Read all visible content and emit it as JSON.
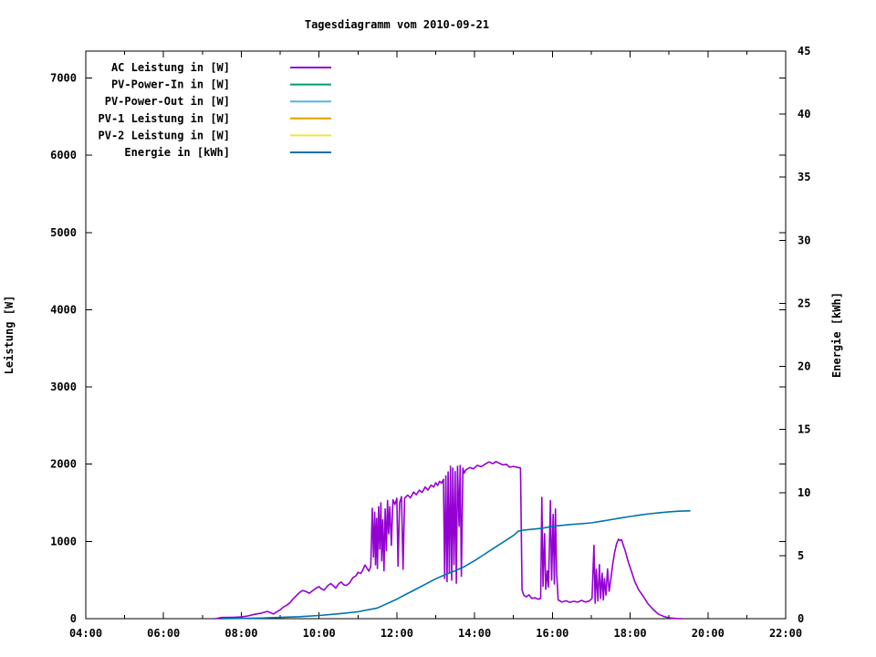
{
  "title": "Tagesdiagramm vom 2010-09-21",
  "axes": {
    "x": {
      "range_hours": [
        4,
        22
      ],
      "major_ticks": [
        {
          "h": 4,
          "label": "04:00"
        },
        {
          "h": 6,
          "label": "06:00"
        },
        {
          "h": 8,
          "label": "08:00"
        },
        {
          "h": 10,
          "label": "10:00"
        },
        {
          "h": 12,
          "label": "12:00"
        },
        {
          "h": 14,
          "label": "14:00"
        },
        {
          "h": 16,
          "label": "16:00"
        },
        {
          "h": 18,
          "label": "18:00"
        },
        {
          "h": 20,
          "label": "20:00"
        },
        {
          "h": 22,
          "label": "22:00"
        }
      ],
      "minor_tick_hours": [
        5,
        7,
        9,
        11,
        13,
        15,
        17,
        19,
        21
      ]
    },
    "y_left": {
      "label": "Leistung [W]",
      "range": [
        0,
        7350
      ],
      "ticks": [
        0,
        1000,
        2000,
        3000,
        4000,
        5000,
        6000,
        7000
      ]
    },
    "y_right": {
      "label": "Energie [kWh]",
      "range": [
        0,
        45
      ],
      "ticks": [
        0,
        5,
        10,
        15,
        20,
        25,
        30,
        35,
        40,
        45
      ]
    }
  },
  "chart_data": {
    "type": "line",
    "title": "Tagesdiagramm vom 2010-09-21",
    "xlabel": "",
    "x_unit": "time (HH:MM), decimal hours in points",
    "legend_position": "top-left-inside",
    "grid": false,
    "series": [
      {
        "name": "AC Leistung in [W]",
        "color": "#9400D3",
        "axis": "left",
        "points": [
          [
            7.33,
            0
          ],
          [
            7.5,
            15
          ],
          [
            7.8,
            18
          ],
          [
            8.0,
            22
          ],
          [
            8.17,
            35
          ],
          [
            8.33,
            55
          ],
          [
            8.5,
            70
          ],
          [
            8.67,
            95
          ],
          [
            8.83,
            60
          ],
          [
            8.9,
            85
          ],
          [
            9.0,
            115
          ],
          [
            9.08,
            150
          ],
          [
            9.17,
            175
          ],
          [
            9.25,
            205
          ],
          [
            9.33,
            255
          ],
          [
            9.42,
            300
          ],
          [
            9.5,
            340
          ],
          [
            9.58,
            365
          ],
          [
            9.67,
            350
          ],
          [
            9.75,
            330
          ],
          [
            9.83,
            360
          ],
          [
            9.92,
            395
          ],
          [
            10.0,
            415
          ],
          [
            10.05,
            390
          ],
          [
            10.13,
            370
          ],
          [
            10.22,
            425
          ],
          [
            10.3,
            455
          ],
          [
            10.37,
            425
          ],
          [
            10.43,
            395
          ],
          [
            10.5,
            450
          ],
          [
            10.57,
            475
          ],
          [
            10.63,
            440
          ],
          [
            10.7,
            430
          ],
          [
            10.78,
            460
          ],
          [
            10.87,
            530
          ],
          [
            10.95,
            555
          ],
          [
            11.0,
            600
          ],
          [
            11.07,
            585
          ],
          [
            11.13,
            635
          ],
          [
            11.18,
            695
          ],
          [
            11.23,
            655
          ],
          [
            11.28,
            615
          ],
          [
            11.33,
            675
          ],
          [
            11.37,
            1430
          ],
          [
            11.4,
            800
          ],
          [
            11.43,
            1380
          ],
          [
            11.45,
            700
          ],
          [
            11.48,
            1300
          ],
          [
            11.5,
            650
          ],
          [
            11.53,
            1450
          ],
          [
            11.56,
            900
          ],
          [
            11.59,
            1500
          ],
          [
            11.61,
            750
          ],
          [
            11.64,
            1280
          ],
          [
            11.67,
            620
          ],
          [
            11.7,
            1420
          ],
          [
            11.73,
            880
          ],
          [
            11.76,
            1530
          ],
          [
            11.79,
            1100
          ],
          [
            11.82,
            1450
          ],
          [
            11.86,
            950
          ],
          [
            11.9,
            1540
          ],
          [
            11.95,
            1480
          ],
          [
            12.0,
            1560
          ],
          [
            12.03,
            680
          ],
          [
            12.07,
            1500
          ],
          [
            12.12,
            1580
          ],
          [
            12.16,
            640
          ],
          [
            12.2,
            1560
          ],
          [
            12.28,
            1600
          ],
          [
            12.35,
            1565
          ],
          [
            12.43,
            1640
          ],
          [
            12.5,
            1605
          ],
          [
            12.58,
            1665
          ],
          [
            12.65,
            1635
          ],
          [
            12.73,
            1705
          ],
          [
            12.8,
            1665
          ],
          [
            12.88,
            1730
          ],
          [
            12.95,
            1705
          ],
          [
            13.0,
            1760
          ],
          [
            13.05,
            1725
          ],
          [
            13.1,
            1780
          ],
          [
            13.15,
            1755
          ],
          [
            13.2,
            1805
          ],
          [
            13.23,
            520
          ],
          [
            13.26,
            1850
          ],
          [
            13.29,
            480
          ],
          [
            13.32,
            1900
          ],
          [
            13.35,
            600
          ],
          [
            13.38,
            1975
          ],
          [
            13.41,
            500
          ],
          [
            13.44,
            1950
          ],
          [
            13.47,
            700
          ],
          [
            13.5,
            1905
          ],
          [
            13.53,
            460
          ],
          [
            13.56,
            1975
          ],
          [
            13.6,
            1200
          ],
          [
            13.63,
            1985
          ],
          [
            13.66,
            550
          ],
          [
            13.7,
            1950
          ],
          [
            13.73,
            1885
          ],
          [
            13.78,
            1930
          ],
          [
            13.88,
            1958
          ],
          [
            13.97,
            1940
          ],
          [
            14.07,
            1985
          ],
          [
            14.17,
            1968
          ],
          [
            14.27,
            2000
          ],
          [
            14.37,
            2030
          ],
          [
            14.47,
            2008
          ],
          [
            14.55,
            2035
          ],
          [
            14.63,
            2015
          ],
          [
            14.72,
            1992
          ],
          [
            14.82,
            1998
          ],
          [
            14.9,
            1962
          ],
          [
            15.0,
            1972
          ],
          [
            15.08,
            1960
          ],
          [
            15.18,
            1952
          ],
          [
            15.22,
            370
          ],
          [
            15.27,
            300
          ],
          [
            15.33,
            282
          ],
          [
            15.4,
            308
          ],
          [
            15.47,
            262
          ],
          [
            15.55,
            272
          ],
          [
            15.63,
            252
          ],
          [
            15.7,
            262
          ],
          [
            15.73,
            1570
          ],
          [
            15.76,
            420
          ],
          [
            15.8,
            1100
          ],
          [
            15.83,
            380
          ],
          [
            15.87,
            620
          ],
          [
            15.9,
            410
          ],
          [
            15.95,
            1530
          ],
          [
            15.98,
            500
          ],
          [
            16.02,
            1350
          ],
          [
            16.05,
            450
          ],
          [
            16.08,
            1420
          ],
          [
            16.11,
            600
          ],
          [
            16.15,
            242
          ],
          [
            16.25,
            215
          ],
          [
            16.35,
            232
          ],
          [
            16.45,
            212
          ],
          [
            16.55,
            226
          ],
          [
            16.65,
            214
          ],
          [
            16.75,
            236
          ],
          [
            16.85,
            216
          ],
          [
            16.95,
            228
          ],
          [
            17.02,
            262
          ],
          [
            17.07,
            950
          ],
          [
            17.1,
            200
          ],
          [
            17.13,
            640
          ],
          [
            17.17,
            232
          ],
          [
            17.21,
            700
          ],
          [
            17.24,
            262
          ],
          [
            17.28,
            590
          ],
          [
            17.31,
            242
          ],
          [
            17.34,
            520
          ],
          [
            17.38,
            305
          ],
          [
            17.42,
            645
          ],
          [
            17.46,
            355
          ],
          [
            17.5,
            500
          ],
          [
            17.55,
            700
          ],
          [
            17.6,
            855
          ],
          [
            17.65,
            965
          ],
          [
            17.7,
            1030
          ],
          [
            17.74,
            1012
          ],
          [
            17.78,
            1022
          ],
          [
            17.83,
            942
          ],
          [
            17.88,
            870
          ],
          [
            17.95,
            740
          ],
          [
            18.03,
            620
          ],
          [
            18.12,
            480
          ],
          [
            18.22,
            375
          ],
          [
            18.33,
            295
          ],
          [
            18.45,
            200
          ],
          [
            18.58,
            125
          ],
          [
            18.72,
            62
          ],
          [
            18.88,
            25
          ],
          [
            19.05,
            8
          ],
          [
            19.2,
            2
          ],
          [
            19.35,
            0
          ]
        ]
      },
      {
        "name": "PV-Power-In in [W]",
        "color": "#009E73",
        "axis": "left",
        "points": []
      },
      {
        "name": "PV-Power-Out in [W]",
        "color": "#56B4E9",
        "axis": "left",
        "points": []
      },
      {
        "name": "PV-1 Leistung in [W]",
        "color": "#E69F00",
        "axis": "left",
        "points": []
      },
      {
        "name": "PV-2 Leistung in [W]",
        "color": "#F0E442",
        "axis": "left",
        "points": []
      },
      {
        "name": "Energie in [kWh]",
        "color": "#0072B2",
        "axis": "right",
        "points": [
          [
            7.5,
            0
          ],
          [
            8.0,
            0.02
          ],
          [
            8.5,
            0.05
          ],
          [
            9.0,
            0.1
          ],
          [
            9.5,
            0.16
          ],
          [
            10.0,
            0.25
          ],
          [
            10.5,
            0.38
          ],
          [
            11.0,
            0.55
          ],
          [
            11.5,
            0.85
          ],
          [
            12.0,
            1.55
          ],
          [
            12.25,
            1.95
          ],
          [
            12.5,
            2.35
          ],
          [
            12.75,
            2.76
          ],
          [
            13.0,
            3.16
          ],
          [
            13.25,
            3.5
          ],
          [
            13.5,
            3.8
          ],
          [
            13.75,
            4.15
          ],
          [
            14.0,
            4.6
          ],
          [
            14.25,
            5.1
          ],
          [
            14.5,
            5.6
          ],
          [
            14.75,
            6.1
          ],
          [
            15.0,
            6.6
          ],
          [
            15.13,
            6.95
          ],
          [
            15.25,
            7.02
          ],
          [
            15.5,
            7.1
          ],
          [
            15.75,
            7.18
          ],
          [
            16.0,
            7.32
          ],
          [
            16.25,
            7.4
          ],
          [
            16.5,
            7.47
          ],
          [
            16.75,
            7.53
          ],
          [
            17.0,
            7.6
          ],
          [
            17.25,
            7.72
          ],
          [
            17.5,
            7.85
          ],
          [
            17.75,
            7.98
          ],
          [
            18.0,
            8.1
          ],
          [
            18.25,
            8.22
          ],
          [
            18.5,
            8.32
          ],
          [
            18.75,
            8.4
          ],
          [
            19.0,
            8.47
          ],
          [
            19.25,
            8.52
          ],
          [
            19.55,
            8.55
          ]
        ]
      }
    ],
    "ylabel_left": "Leistung [W]",
    "ylabel_right": "Energie [kWh]",
    "ylim_left": [
      0,
      7350
    ],
    "ylim_right": [
      0,
      45
    ],
    "xlim_hours": [
      4,
      22
    ]
  }
}
